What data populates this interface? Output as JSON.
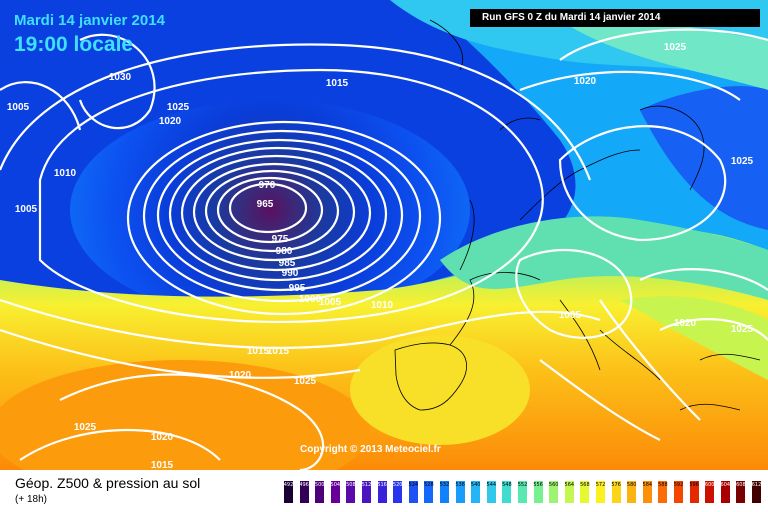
{
  "header": {
    "date_text": "Mardi 14 janvier 2014",
    "time_text": "19:00 locale",
    "run_text": "Run GFS 0 Z du Mardi 14 janvier 2014"
  },
  "footer": {
    "title": "Géop. Z500 & pression au sol",
    "subtitle": "(+ 18h)"
  },
  "copyright": "Copyright © 2013 Meteociel.fr",
  "legend": {
    "values": [
      "492",
      "496",
      "500",
      "504",
      "508",
      "512",
      "516",
      "520",
      "524",
      "528",
      "532",
      "536",
      "540",
      "544",
      "548",
      "552",
      "556",
      "560",
      "564",
      "568",
      "572",
      "576",
      "580",
      "584",
      "588",
      "592",
      "596",
      "600",
      "604",
      "608",
      "612"
    ],
    "colors": [
      "#1a0033",
      "#330055",
      "#4d0077",
      "#660099",
      "#5a0aa8",
      "#4a14c0",
      "#3a22d8",
      "#2a34ec",
      "#1e50f4",
      "#1668fa",
      "#1282fc",
      "#1a9cfc",
      "#24b4f8",
      "#30cae8",
      "#40dcd0",
      "#58e8b0",
      "#78f090",
      "#9cf470",
      "#c4f850",
      "#e8f830",
      "#fcf020",
      "#fcd418",
      "#fcb410",
      "#fc9008",
      "#fc6c04",
      "#f44800",
      "#e42800",
      "#cc1000",
      "#a80000",
      "#780000",
      "#400000"
    ]
  },
  "contours": [
    {
      "value": "965"
    },
    {
      "value": "970"
    },
    {
      "value": "975"
    },
    {
      "value": "980"
    },
    {
      "value": "985"
    },
    {
      "value": "990"
    },
    {
      "value": "995"
    },
    {
      "value": "1000"
    },
    {
      "value": "1005"
    },
    {
      "value": "1010"
    },
    {
      "value": "1015"
    },
    {
      "value": "1020"
    },
    {
      "value": "1025"
    },
    {
      "value": "1030"
    }
  ],
  "pressure_labels": [
    "1030",
    "1025",
    "1020",
    "1005",
    "1010",
    "1005",
    "1015",
    "1025",
    "1020",
    "1025",
    "1015",
    "1005",
    "1020",
    "1025",
    "1010",
    "1005",
    "1000",
    "1015",
    "1020",
    "1025",
    "1025",
    "1020",
    "1015",
    "970",
    "965",
    "975",
    "980",
    "985",
    "990",
    "995"
  ]
}
